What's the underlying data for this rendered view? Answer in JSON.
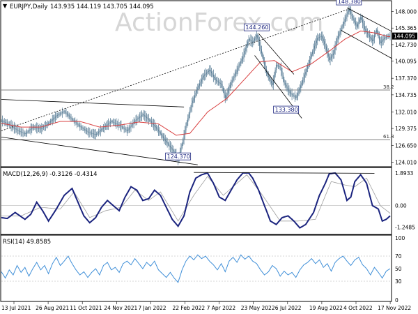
{
  "header": {
    "symbol_line": "EURJPY,Daily",
    "ohlc": "143.935 144.119 143.705 144.095"
  },
  "watermark": "ActionForex.com",
  "colors": {
    "candle": "#5b7f98",
    "ma": "#d94040",
    "trendline": "#000000",
    "macd_line": "#1a237e",
    "macd_signal": "#9e9e9e",
    "rsi_line": "#3f8fd8",
    "label_box_border": "#1a237e",
    "label_text": "#1a237e"
  },
  "chart_data": [
    {
      "type": "line",
      "name": "price",
      "ylim": [
        123.5,
        149.5
      ],
      "y_ticks": [
        "148.000",
        "145.365",
        "142.730",
        "140.095",
        "137.370",
        "134.735",
        "132.010",
        "129.375",
        "126.650",
        "124.010"
      ],
      "current_price_label": "144.095",
      "date_ticks": [
        "13 Jul 2021",
        "26 Aug 2021",
        "11 Oct 2021",
        "24 Nov 2021",
        "7 Jan 2022",
        "22 Feb 2022",
        "7 Apr 2022",
        "23 May 2022",
        "6 Jul 2022",
        "19 Aug 2022",
        "4 Oct 2022",
        "17 Nov 2022"
      ],
      "price_keypoints": [
        [
          0,
          130.6
        ],
        [
          8,
          130.0
        ],
        [
          16,
          129.1
        ],
        [
          24,
          128.5
        ],
        [
          32,
          129.6
        ],
        [
          40,
          129.3
        ],
        [
          48,
          130.2
        ],
        [
          56,
          131.4
        ],
        [
          64,
          132.1
        ],
        [
          72,
          130.8
        ],
        [
          80,
          129.7
        ],
        [
          88,
          128.8
        ],
        [
          96,
          128.4
        ],
        [
          104,
          129.5
        ],
        [
          112,
          130.5
        ],
        [
          120,
          129.9
        ],
        [
          128,
          129.0
        ],
        [
          136,
          130.6
        ],
        [
          144,
          131.6
        ],
        [
          152,
          130.5
        ],
        [
          160,
          129.0
        ],
        [
          168,
          127.2
        ],
        [
          176,
          125.6
        ],
        [
          180,
          124.4
        ],
        [
          184,
          126.9
        ],
        [
          188,
          129.8
        ],
        [
          194,
          133.4
        ],
        [
          200,
          135.9
        ],
        [
          206,
          137.8
        ],
        [
          212,
          138.7
        ],
        [
          218,
          137.1
        ],
        [
          224,
          136.4
        ],
        [
          228,
          134.2
        ],
        [
          234,
          136.7
        ],
        [
          240,
          138.7
        ],
        [
          246,
          140.8
        ],
        [
          252,
          143.6
        ],
        [
          256,
          143.1
        ],
        [
          260,
          144.26
        ],
        [
          264,
          142.0
        ],
        [
          270,
          138.2
        ],
        [
          276,
          136.3
        ],
        [
          280,
          139.5
        ],
        [
          284,
          139.1
        ],
        [
          288,
          136.6
        ],
        [
          294,
          135.0
        ],
        [
          300,
          134.3
        ],
        [
          304,
          135.8
        ],
        [
          310,
          138.4
        ],
        [
          314,
          140.3
        ],
        [
          318,
          142.1
        ],
        [
          322,
          143.8
        ],
        [
          326,
          144.1
        ],
        [
          330,
          142.4
        ],
        [
          334,
          140.3
        ],
        [
          338,
          141.3
        ],
        [
          342,
          143.7
        ],
        [
          346,
          145.2
        ],
        [
          350,
          146.8
        ],
        [
          354,
          148.38
        ],
        [
          358,
          146.9
        ],
        [
          362,
          145.6
        ],
        [
          366,
          147.1
        ],
        [
          370,
          145.2
        ],
        [
          374,
          144.2
        ],
        [
          378,
          143.3
        ],
        [
          382,
          145.1
        ],
        [
          386,
          143.0
        ],
        [
          390,
          143.8
        ],
        [
          394,
          144.1
        ]
      ],
      "ma_keypoints": [
        [
          0,
          130.2
        ],
        [
          20,
          129.6
        ],
        [
          40,
          129.6
        ],
        [
          60,
          130.5
        ],
        [
          80,
          130.5
        ],
        [
          100,
          129.6
        ],
        [
          120,
          129.9
        ],
        [
          140,
          130.4
        ],
        [
          160,
          130.1
        ],
        [
          178,
          128.3
        ],
        [
          192,
          128.6
        ],
        [
          210,
          132.0
        ],
        [
          230,
          134.2
        ],
        [
          250,
          137.6
        ],
        [
          264,
          140.0
        ],
        [
          278,
          140.2
        ],
        [
          296,
          138.4
        ],
        [
          316,
          139.7
        ],
        [
          334,
          141.7
        ],
        [
          350,
          143.6
        ],
        [
          366,
          144.9
        ],
        [
          380,
          144.6
        ],
        [
          394,
          144.0
        ]
      ],
      "labels": [
        {
          "text": "148.380",
          "x": 354,
          "y": 148.38
        },
        {
          "text": "144.260",
          "x": 260,
          "y": 144.26
        },
        {
          "text": "133.380",
          "x": 290,
          "y": 133.38
        },
        {
          "text": "124.370",
          "x": 180,
          "y": 124.37
        }
      ],
      "fib_levels": [
        {
          "label": "38.2",
          "value": 135.5
        },
        {
          "label": "61.8",
          "value": 127.6
        }
      ],
      "trendlines": [
        {
          "style": "dotted",
          "from": [
            0,
            129.0
          ],
          "to": [
            356,
            148.5
          ]
        },
        {
          "style": "solid",
          "from": [
            0,
            134.0
          ],
          "to": [
            186,
            132.8
          ]
        },
        {
          "style": "solid",
          "from": [
            0,
            128.0
          ],
          "to": [
            200,
            123.6
          ]
        },
        {
          "style": "solid",
          "from": [
            262,
            144.5
          ],
          "to": [
            298,
            138.0
          ]
        },
        {
          "style": "solid",
          "from": [
            258,
            141.0
          ],
          "to": [
            306,
            131.0
          ]
        },
        {
          "style": "solid",
          "from": [
            352,
            148.6
          ],
          "to": [
            398,
            144.8
          ]
        },
        {
          "style": "solid",
          "from": [
            346,
            145.0
          ],
          "to": [
            398,
            140.5
          ]
        }
      ]
    },
    {
      "type": "line",
      "name": "MACD",
      "title": "MACD(12,26,9) -0.3126 -0.4314",
      "ylim": [
        -1.6,
        2.1
      ],
      "y_ticks": [
        "1.8933",
        "0.00",
        "-1.2485"
      ],
      "macd_keypoints": [
        [
          0,
          -0.7
        ],
        [
          6,
          -0.75
        ],
        [
          14,
          -0.4
        ],
        [
          24,
          -0.8
        ],
        [
          30,
          -0.5
        ],
        [
          36,
          0.2
        ],
        [
          42,
          -0.3
        ],
        [
          48,
          -0.9
        ],
        [
          56,
          -0.2
        ],
        [
          64,
          0.6
        ],
        [
          72,
          1.0
        ],
        [
          78,
          0.2
        ],
        [
          84,
          -0.6
        ],
        [
          90,
          -1.0
        ],
        [
          96,
          -0.7
        ],
        [
          102,
          -0.1
        ],
        [
          108,
          0.3
        ],
        [
          114,
          0.0
        ],
        [
          120,
          -0.3
        ],
        [
          126,
          0.5
        ],
        [
          132,
          1.1
        ],
        [
          138,
          0.9
        ],
        [
          144,
          0.3
        ],
        [
          150,
          0.4
        ],
        [
          156,
          0.9
        ],
        [
          162,
          0.6
        ],
        [
          168,
          -0.1
        ],
        [
          174,
          -0.8
        ],
        [
          180,
          -1.2
        ],
        [
          186,
          -0.6
        ],
        [
          192,
          0.8
        ],
        [
          198,
          1.6
        ],
        [
          204,
          1.8
        ],
        [
          210,
          1.9
        ],
        [
          216,
          1.3
        ],
        [
          222,
          0.5
        ],
        [
          228,
          0.3
        ],
        [
          234,
          0.9
        ],
        [
          240,
          1.5
        ],
        [
          246,
          1.9
        ],
        [
          252,
          1.9
        ],
        [
          256,
          1.6
        ],
        [
          262,
          0.9
        ],
        [
          268,
          0.0
        ],
        [
          274,
          -0.9
        ],
        [
          280,
          -1.1
        ],
        [
          286,
          -0.7
        ],
        [
          292,
          -0.6
        ],
        [
          298,
          -0.9
        ],
        [
          304,
          -1.3
        ],
        [
          310,
          -1.1
        ],
        [
          318,
          -0.4
        ],
        [
          324,
          0.6
        ],
        [
          330,
          1.3
        ],
        [
          334,
          1.85
        ],
        [
          340,
          1.9
        ],
        [
          346,
          1.5
        ],
        [
          352,
          0.3
        ],
        [
          356,
          0.5
        ],
        [
          360,
          1.4
        ],
        [
          366,
          1.8
        ],
        [
          372,
          1.3
        ],
        [
          378,
          0.0
        ],
        [
          384,
          -0.2
        ],
        [
          388,
          -0.9
        ],
        [
          392,
          -0.8
        ],
        [
          396,
          -0.6
        ]
      ],
      "signal_keypoints": [
        [
          0,
          -0.6
        ],
        [
          20,
          -0.6
        ],
        [
          40,
          -0.1
        ],
        [
          60,
          -0.2
        ],
        [
          74,
          0.8
        ],
        [
          90,
          -0.7
        ],
        [
          106,
          -0.3
        ],
        [
          122,
          -0.1
        ],
        [
          136,
          0.9
        ],
        [
          150,
          0.3
        ],
        [
          162,
          0.8
        ],
        [
          180,
          -0.9
        ],
        [
          196,
          0.6
        ],
        [
          210,
          1.7
        ],
        [
          226,
          0.6
        ],
        [
          250,
          1.8
        ],
        [
          266,
          0.6
        ],
        [
          284,
          -0.9
        ],
        [
          302,
          -0.9
        ],
        [
          320,
          -0.8
        ],
        [
          336,
          1.4
        ],
        [
          350,
          1.2
        ],
        [
          360,
          1.1
        ],
        [
          372,
          1.6
        ],
        [
          386,
          0.0
        ],
        [
          396,
          -0.45
        ]
      ],
      "trendline": {
        "from": [
          196,
          1.93
        ],
        "to": [
          380,
          1.88
        ]
      }
    },
    {
      "type": "line",
      "name": "RSI",
      "title": "RSI(14) 49.8585",
      "ylim": [
        0,
        100
      ],
      "y_ticks": [
        "100",
        "70",
        "50",
        "30",
        "0"
      ],
      "rsi_keypoints": [
        [
          0,
          45
        ],
        [
          4,
          35
        ],
        [
          8,
          48
        ],
        [
          12,
          40
        ],
        [
          16,
          55
        ],
        [
          20,
          44
        ],
        [
          24,
          52
        ],
        [
          28,
          38
        ],
        [
          32,
          50
        ],
        [
          36,
          60
        ],
        [
          40,
          48
        ],
        [
          44,
          55
        ],
        [
          48,
          42
        ],
        [
          52,
          58
        ],
        [
          56,
          68
        ],
        [
          60,
          55
        ],
        [
          64,
          62
        ],
        [
          68,
          70
        ],
        [
          72,
          58
        ],
        [
          76,
          48
        ],
        [
          80,
          40
        ],
        [
          84,
          45
        ],
        [
          88,
          36
        ],
        [
          92,
          44
        ],
        [
          96,
          50
        ],
        [
          100,
          40
        ],
        [
          104,
          55
        ],
        [
          108,
          60
        ],
        [
          112,
          48
        ],
        [
          116,
          52
        ],
        [
          120,
          44
        ],
        [
          124,
          58
        ],
        [
          128,
          62
        ],
        [
          132,
          56
        ],
        [
          136,
          66
        ],
        [
          140,
          58
        ],
        [
          144,
          50
        ],
        [
          148,
          60
        ],
        [
          152,
          54
        ],
        [
          156,
          62
        ],
        [
          160,
          48
        ],
        [
          164,
          42
        ],
        [
          168,
          36
        ],
        [
          172,
          44
        ],
        [
          176,
          35
        ],
        [
          180,
          28
        ],
        [
          184,
          48
        ],
        [
          188,
          62
        ],
        [
          192,
          70
        ],
        [
          196,
          64
        ],
        [
          200,
          72
        ],
        [
          204,
          66
        ],
        [
          208,
          70
        ],
        [
          212,
          62
        ],
        [
          216,
          56
        ],
        [
          220,
          48
        ],
        [
          224,
          58
        ],
        [
          228,
          45
        ],
        [
          232,
          62
        ],
        [
          236,
          68
        ],
        [
          240,
          60
        ],
        [
          244,
          72
        ],
        [
          248,
          65
        ],
        [
          252,
          70
        ],
        [
          256,
          62
        ],
        [
          260,
          58
        ],
        [
          264,
          48
        ],
        [
          268,
          40
        ],
        [
          272,
          45
        ],
        [
          276,
          55
        ],
        [
          280,
          50
        ],
        [
          284,
          38
        ],
        [
          288,
          46
        ],
        [
          292,
          40
        ],
        [
          296,
          44
        ],
        [
          300,
          36
        ],
        [
          304,
          48
        ],
        [
          308,
          56
        ],
        [
          312,
          60
        ],
        [
          316,
          66
        ],
        [
          320,
          58
        ],
        [
          324,
          64
        ],
        [
          328,
          52
        ],
        [
          332,
          58
        ],
        [
          336,
          46
        ],
        [
          340,
          60
        ],
        [
          344,
          66
        ],
        [
          348,
          70
        ],
        [
          352,
          62
        ],
        [
          356,
          55
        ],
        [
          360,
          64
        ],
        [
          364,
          68
        ],
        [
          368,
          56
        ],
        [
          372,
          50
        ],
        [
          376,
          40
        ],
        [
          380,
          52
        ],
        [
          384,
          44
        ],
        [
          388,
          35
        ],
        [
          392,
          46
        ],
        [
          396,
          50
        ]
      ]
    }
  ]
}
